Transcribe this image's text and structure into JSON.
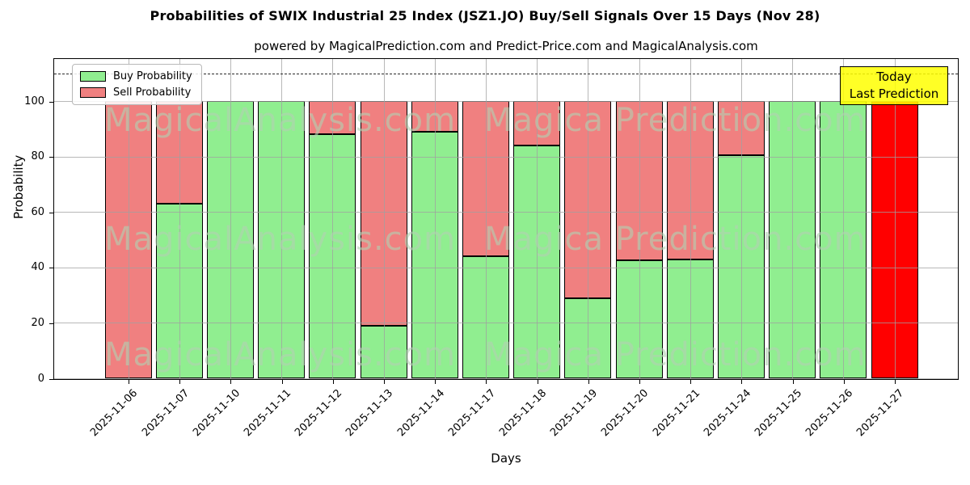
{
  "chart_data": {
    "type": "bar",
    "stacked": true,
    "title": "Probabilities of SWIX Industrial 25 Index (JSZ1.JO) Buy/Sell Signals Over 15 Days (Nov 28)",
    "subtitle": "powered by MagicalPrediction.com and Predict-Price.com and MagicalAnalysis.com",
    "xlabel": "Days",
    "ylabel": "Probability",
    "categories": [
      "2025-11-06",
      "2025-11-07",
      "2025-11-10",
      "2025-11-11",
      "2025-11-12",
      "2025-11-13",
      "2025-11-14",
      "2025-11-17",
      "2025-11-18",
      "2025-11-19",
      "2025-11-20",
      "2025-11-21",
      "2025-11-24",
      "2025-11-25",
      "2025-11-26",
      "2025-11-27"
    ],
    "series": [
      {
        "name": "Buy Probability",
        "color": "#90EE90",
        "values": [
          0,
          63,
          100,
          100,
          88,
          19,
          89,
          44,
          84,
          29,
          42.5,
          43,
          80.5,
          100,
          100,
          0
        ]
      },
      {
        "name": "Sell Probability",
        "color": "#F08080",
        "values": [
          100,
          37,
          0,
          0,
          12,
          81,
          11,
          56,
          16,
          71,
          57.5,
          57,
          19.5,
          0,
          0,
          100
        ]
      }
    ],
    "special_bar": {
      "category": "2025-11-27",
      "index": 15,
      "color": "#FF0000",
      "meaning": "today last prediction, 100% sell"
    },
    "ylim": [
      0,
      116
    ],
    "yticks": [
      0,
      20,
      40,
      60,
      80,
      100
    ],
    "dashed_line_y": 110,
    "grid": true,
    "legend_position": "upper left"
  },
  "legend": {
    "items": [
      {
        "label": "Buy Probability",
        "color": "#90EE90"
      },
      {
        "label": "Sell Probability",
        "color": "#F08080"
      }
    ]
  },
  "annotation": {
    "line1": "Today",
    "line2": "Last Prediction",
    "bg_color": "#FFFF00"
  },
  "watermarks": {
    "left_text": "MagicalAnalysis.com",
    "right_text": "Magica Prediction.com"
  }
}
